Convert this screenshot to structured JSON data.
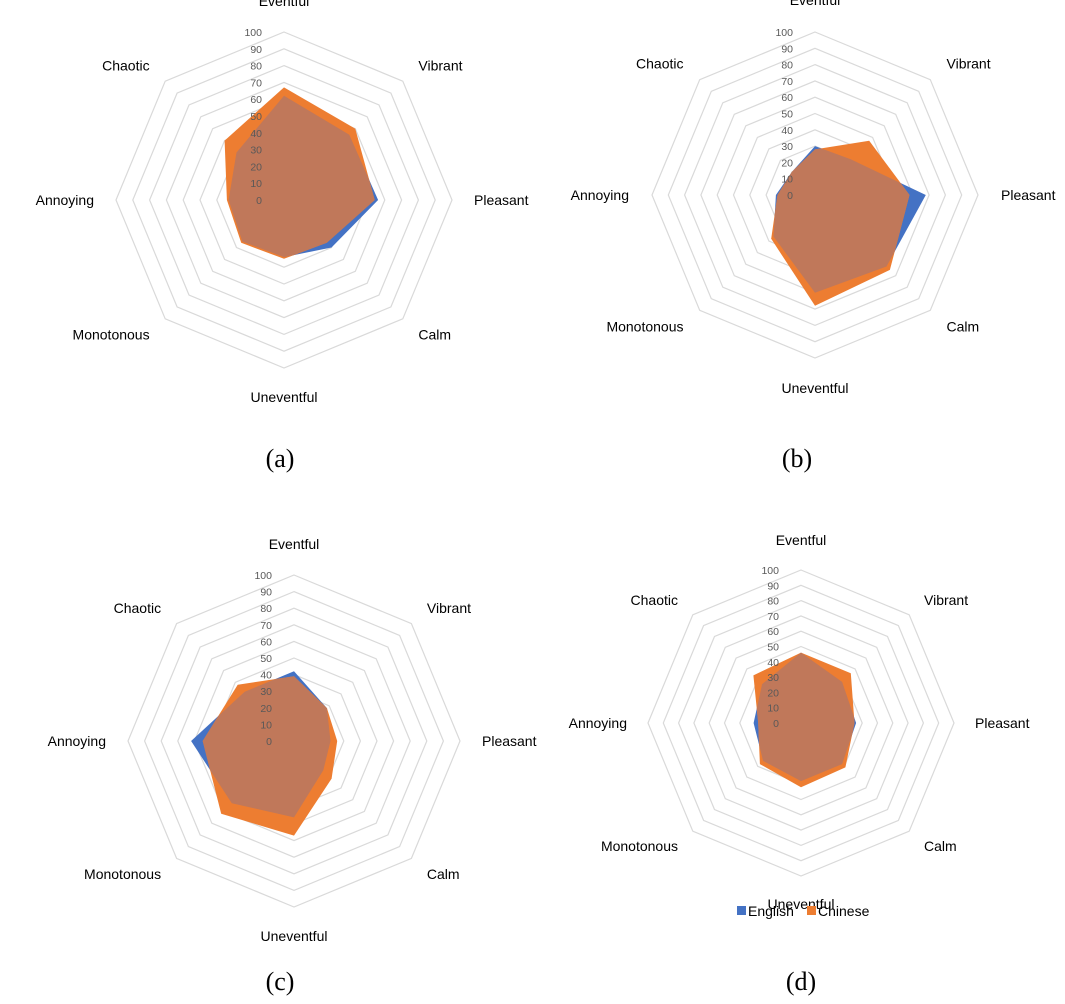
{
  "categories": [
    "Eventful",
    "Vibrant",
    "Pleasant",
    "Calm",
    "Uneventful",
    "Monotonous",
    "Annoying",
    "Chaotic"
  ],
  "ticks": [
    "100",
    "90",
    "80",
    "70",
    "60",
    "50",
    "40",
    "30",
    "20",
    "10",
    "0"
  ],
  "colors": {
    "English": "#4472c4",
    "Chinese": "#ed7d31",
    "overlap": "#c0785a",
    "grid": "#d9d9d9"
  },
  "legend": {
    "english_label": "English",
    "chinese_label": "Chinese"
  },
  "chart_data": [
    {
      "type": "radar",
      "caption": "(a)",
      "categories": [
        "Eventful",
        "Vibrant",
        "Pleasant",
        "Calm",
        "Uneventful",
        "Monotonous",
        "Annoying",
        "Chaotic"
      ],
      "range": [
        0,
        100
      ],
      "series": [
        {
          "name": "English",
          "values": [
            62,
            55,
            56,
            40,
            34,
            35,
            33,
            40
          ]
        },
        {
          "name": "Chinese",
          "values": [
            67,
            60,
            54,
            36,
            35,
            36,
            34,
            50
          ]
        }
      ]
    },
    {
      "type": "radar",
      "caption": "(b)",
      "categories": [
        "Eventful",
        "Vibrant",
        "Pleasant",
        "Calm",
        "Uneventful",
        "Monotonous",
        "Annoying",
        "Chaotic"
      ],
      "range": [
        0,
        100
      ],
      "series": [
        {
          "name": "English",
          "values": [
            30,
            31,
            68,
            62,
            60,
            36,
            24,
            20
          ]
        },
        {
          "name": "Chinese",
          "values": [
            28,
            47,
            58,
            65,
            68,
            38,
            23,
            20
          ]
        }
      ]
    },
    {
      "type": "radar",
      "caption": "(c)",
      "categories": [
        "Eventful",
        "Vibrant",
        "Pleasant",
        "Calm",
        "Uneventful",
        "Monotonous",
        "Annoying",
        "Chaotic"
      ],
      "range": [
        0,
        100
      ],
      "series": [
        {
          "name": "English",
          "values": [
            42,
            28,
            22,
            25,
            46,
            53,
            62,
            42
          ]
        },
        {
          "name": "Chinese",
          "values": [
            39,
            28,
            26,
            32,
            57,
            62,
            55,
            48
          ]
        }
      ]
    },
    {
      "type": "radar",
      "caption": "(d)",
      "categories": [
        "Eventful",
        "Vibrant",
        "Pleasant",
        "Calm",
        "Uneventful",
        "Monotonous",
        "Annoying",
        "Chaotic"
      ],
      "range": [
        0,
        100
      ],
      "series": [
        {
          "name": "English",
          "values": [
            46,
            38,
            36,
            38,
            38,
            35,
            31,
            36
          ]
        },
        {
          "name": "Chinese",
          "values": [
            46,
            46,
            35,
            41,
            42,
            38,
            28,
            44
          ]
        }
      ]
    }
  ]
}
